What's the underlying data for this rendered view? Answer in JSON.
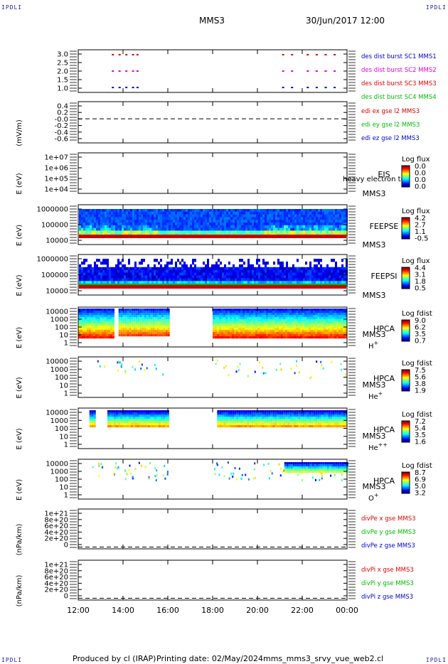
{
  "header": {
    "corner_label": "IPDLI",
    "spacecraft": "MMS3",
    "date_time": "30/Jun/2017 12:00"
  },
  "footer": {
    "produced_by": "Produced by cl (IRAP)",
    "printing_date": "Printing date: 02/May/2024",
    "file_name": "mms_mms3_srvy_vue_web2.cl"
  },
  "colors": {
    "red": "#dd0000",
    "green": "#00bb00",
    "blue": "#0000cc",
    "magenta": "#dd00dd",
    "brown": "#aa5500",
    "dark_red": "#cc0000"
  },
  "chart_data": [
    {
      "type": "scatter",
      "ylabel": "",
      "yticks": [
        "3.0",
        "2.5",
        "2.0",
        "1.5",
        "1.0"
      ],
      "ylim": [
        0.7,
        3.3
      ],
      "legend": [
        "des dist burst SC1 MMS1",
        "des dist burst SC2 MMS2",
        "des dist burst SC3 MMS3",
        "des dist burst SC4 MMS4"
      ],
      "legend_colors": [
        "blue",
        "magenta",
        "red",
        "green"
      ],
      "series": [
        {
          "name": "des dist burst SC3 MMS3",
          "color": "red",
          "y": 3.0,
          "x": [
            13.5,
            13.8,
            14.1,
            14.4,
            14.6,
            21.1,
            21.5,
            22.2,
            22.6,
            23.0,
            23.4
          ]
        },
        {
          "name": "des dist burst SC2 MMS2",
          "color": "magenta",
          "y": 2.0,
          "x": [
            13.5,
            13.8,
            14.1,
            14.4,
            14.6,
            21.1,
            21.5,
            22.2,
            22.6,
            23.0,
            23.4
          ]
        },
        {
          "name": "des dist burst SC1 MMS1",
          "color": "blue",
          "y": 1.0,
          "x": [
            13.5,
            13.8,
            14.1,
            14.4,
            14.6,
            21.1,
            21.5,
            22.2,
            22.6,
            23.0,
            23.4
          ]
        }
      ]
    },
    {
      "type": "line",
      "ylabel": "(mV/m)",
      "yticks": [
        "0.4",
        "0.2",
        "-0.0",
        "-0.2",
        "-0.4",
        "-0.6"
      ],
      "ylim": [
        -0.7,
        0.5
      ],
      "zero_line": true,
      "legend": [
        "edi ex gse l2 MMS3",
        "edi ey gse l2 MMS3",
        "edi ez gse l2 MMS3"
      ],
      "legend_colors": [
        "red",
        "green",
        "blue"
      ]
    },
    {
      "type": "heatmap",
      "ylabel": "E (eV)",
      "yticks": [
        "1e+07",
        "1e+06",
        "1e+05",
        "1e+04"
      ],
      "instrument": [
        "EIS",
        "MMS3"
      ],
      "overlay_text": "heavy electron to",
      "colorbar_title": "Log flux",
      "colorbar_ticks": [
        "0.0",
        "0.0",
        "0.0",
        "0.0"
      ]
    },
    {
      "type": "heatmap",
      "ylabel": "E (eV)",
      "yticks": [
        "1000000",
        "100000",
        "10000"
      ],
      "instrument": [
        "FEEPSE",
        "MMS3"
      ],
      "colorbar_title": "Log flux",
      "colorbar_ticks": [
        "4.2",
        "2.7",
        "1.1",
        "-0.5"
      ]
    },
    {
      "type": "heatmap",
      "ylabel": "E (eV)",
      "yticks": [
        "1000000",
        "100000",
        "10000"
      ],
      "instrument": [
        "FEEPSI",
        "MMS3"
      ],
      "colorbar_title": "Log flux",
      "colorbar_ticks": [
        "4.4",
        "3.1",
        "1.8",
        "0.5"
      ]
    },
    {
      "type": "heatmap",
      "ylabel": "E (eV)",
      "yticks": [
        "10000",
        "1000",
        "100",
        "10",
        "1"
      ],
      "instrument": [
        "HPCA",
        "MMS3"
      ],
      "species": "H",
      "species_sup": "+",
      "colorbar_title": "Log fdist",
      "colorbar_ticks": [
        "9.0",
        "6.2",
        "3.5",
        "0.7"
      ],
      "data_intervals": [
        [
          12.0,
          13.6
        ],
        [
          18.0,
          24.0
        ]
      ]
    },
    {
      "type": "heatmap",
      "ylabel": "E (eV)",
      "yticks": [
        "10000",
        "1000",
        "100",
        "10",
        "1"
      ],
      "instrument": [
        "HPCA",
        "MMS3"
      ],
      "species": "He",
      "species_sup": "+",
      "colorbar_title": "Log fdist",
      "colorbar_ticks": [
        "7.5",
        "5.6",
        "3.8",
        "1.9"
      ]
    },
    {
      "type": "heatmap",
      "ylabel": "E (eV)",
      "yticks": [
        "10000",
        "1000",
        "100",
        "10",
        "1"
      ],
      "instrument": [
        "HPCA",
        "MMS3"
      ],
      "species": "He",
      "species_sup": "++",
      "colorbar_title": "Log fdist",
      "colorbar_ticks": [
        "7.2",
        "5.4",
        "3.5",
        "1.6"
      ],
      "data_intervals": [
        [
          12.5,
          12.7
        ],
        [
          13.3,
          16.0
        ],
        [
          18.2,
          24.0
        ]
      ]
    },
    {
      "type": "heatmap",
      "ylabel": "E (eV)",
      "yticks": [
        "10000",
        "1000",
        "100",
        "10",
        "1"
      ],
      "instrument": [
        "HPCA",
        "MMS3"
      ],
      "species": "O",
      "species_sup": "+",
      "colorbar_title": "Log fdist",
      "colorbar_ticks": [
        "8.7",
        "6.9",
        "5.0",
        "3.2"
      ]
    },
    {
      "type": "line",
      "ylabel": "(nPa/km)",
      "yticks": [
        "1e+21",
        "8e+20",
        "6e+20",
        "4e+20",
        "2e+20",
        "0"
      ],
      "ylim": [
        -5e+19,
        1.05e+21
      ],
      "zero_line": true,
      "legend": [
        "divPe x gse MMS3",
        "divPe y gse MMS3",
        "divPe z gse MMS3"
      ],
      "legend_colors": [
        "red",
        "green",
        "blue"
      ]
    },
    {
      "type": "line",
      "ylabel": "(nPa/km)",
      "yticks": [
        "1e+21",
        "8e+20",
        "6e+20",
        "4e+20",
        "2e+20",
        "0"
      ],
      "ylim": [
        -5e+19,
        1.05e+21
      ],
      "zero_line": true,
      "legend": [
        "divPi x gse MMS3",
        "divPi y gse MMS3",
        "divPi z gse MMS3"
      ],
      "legend_colors": [
        "red",
        "green",
        "blue"
      ]
    }
  ],
  "xaxis": {
    "ticks": [
      "12:00",
      "14:00",
      "16:00",
      "18:00",
      "20:00",
      "22:00",
      "00:00"
    ],
    "range_hours": [
      12,
      24
    ]
  }
}
